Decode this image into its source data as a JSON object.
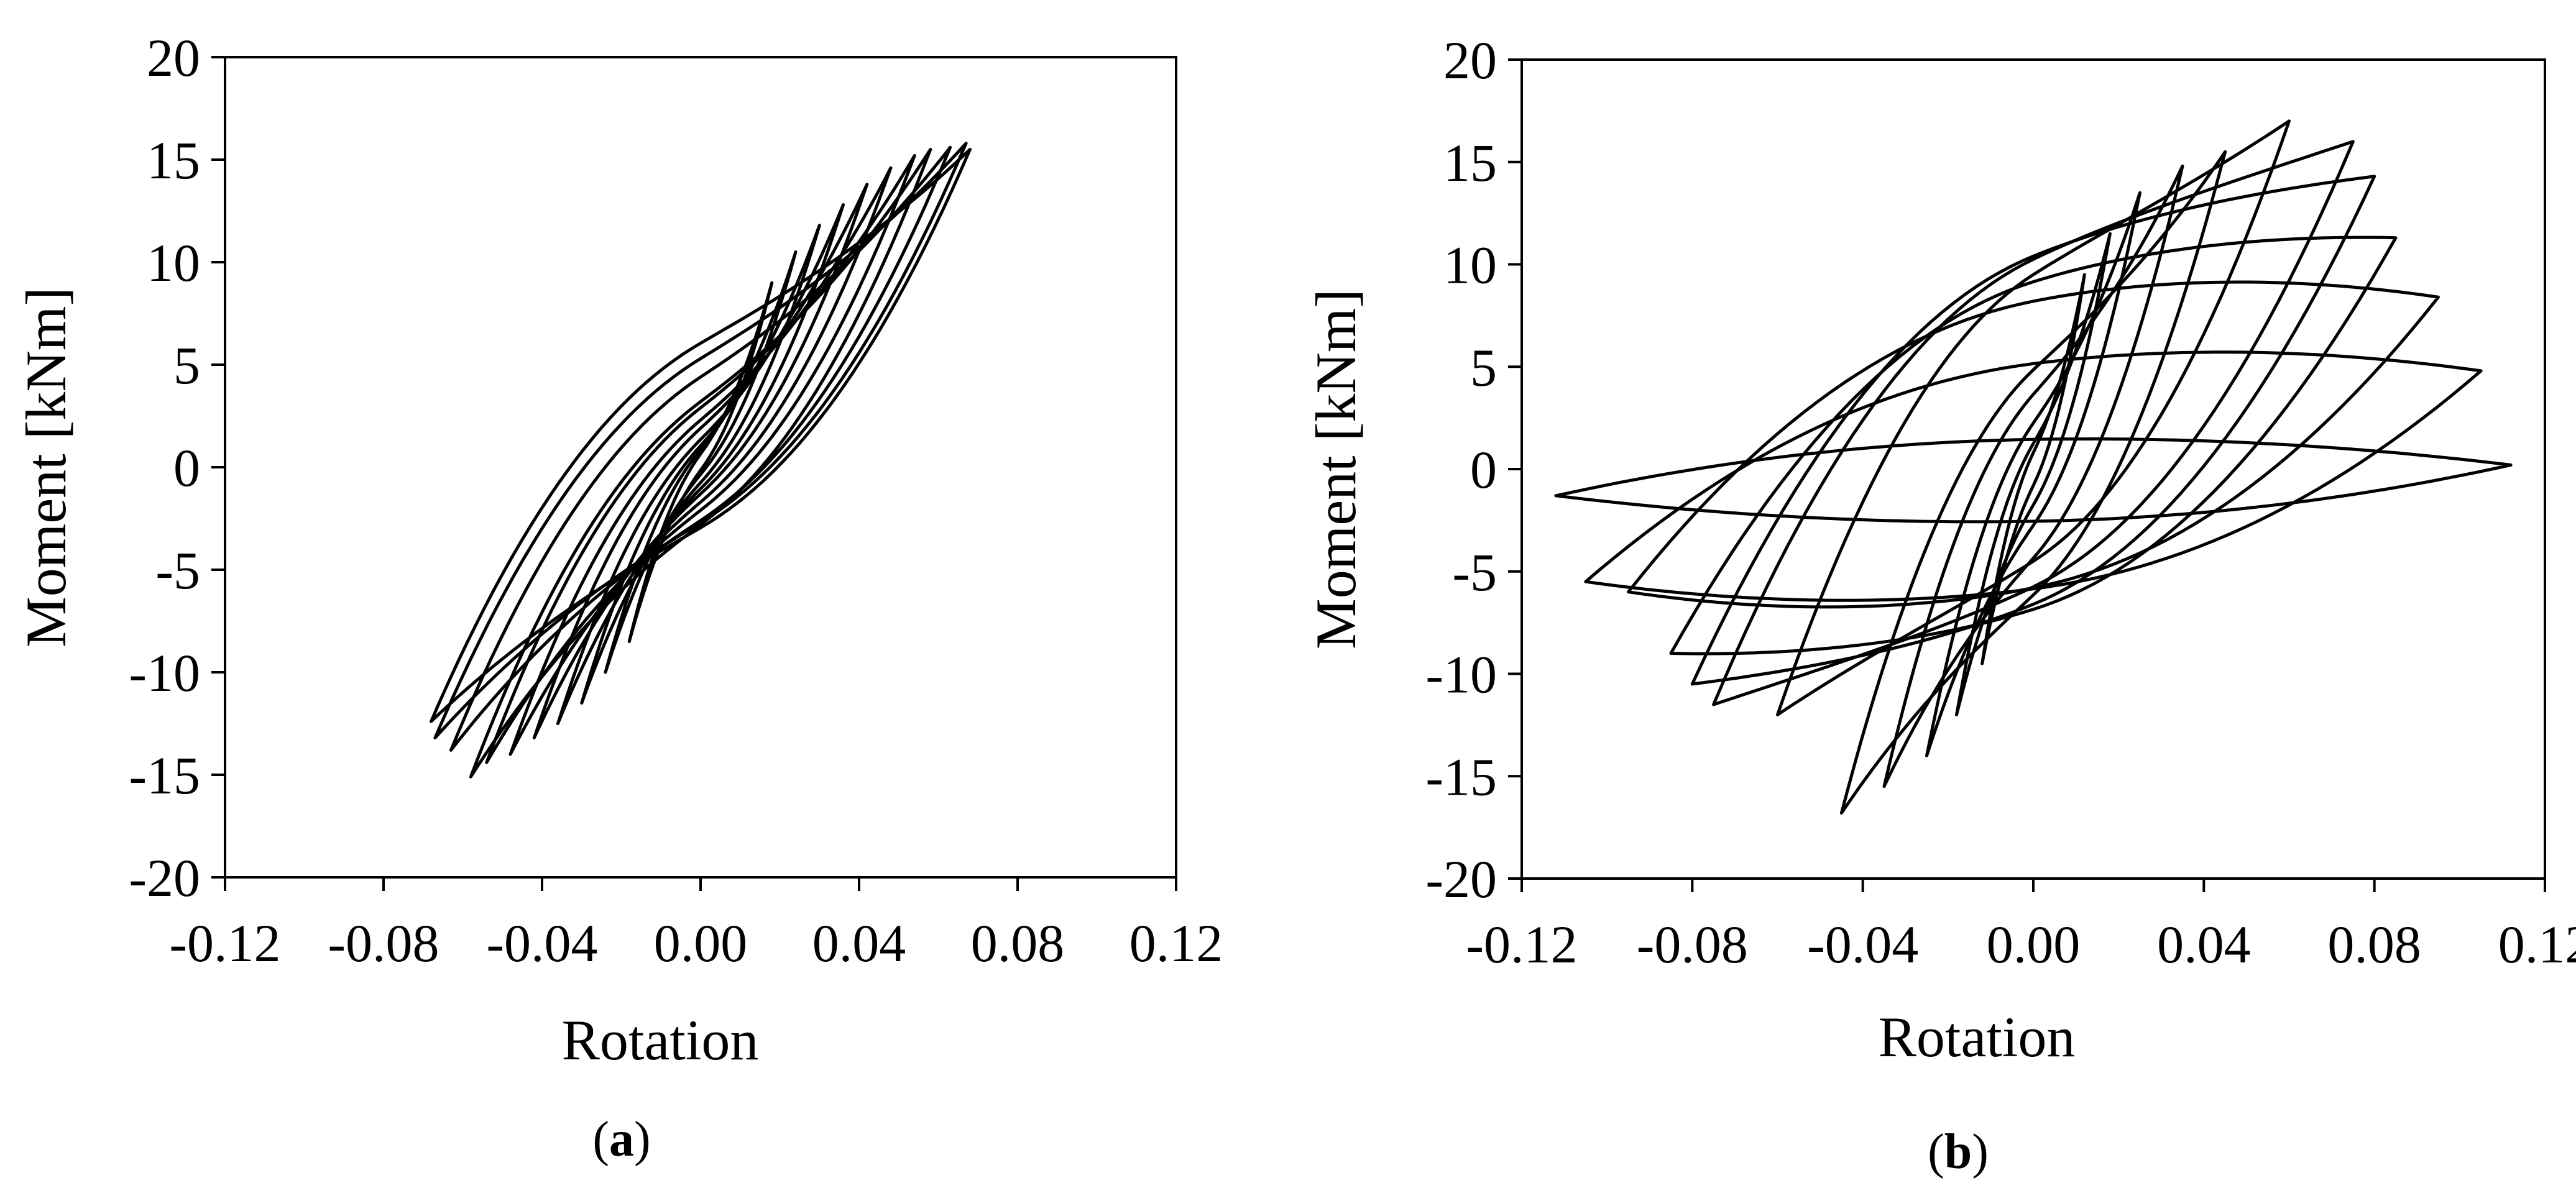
{
  "chart_data": [
    {
      "type": "line",
      "caption_open": "(",
      "caption_letter": "a",
      "caption_close": ")",
      "xlabel": "Rotation",
      "ylabel": "Moment [kNm]",
      "xlim": [
        -0.12,
        0.12
      ],
      "ylim": [
        -20,
        20
      ],
      "xticks": [
        -0.12,
        -0.08,
        -0.04,
        0.0,
        0.04,
        0.08,
        0.12
      ],
      "xtick_labels": [
        "-0.12",
        "-0.08",
        "-0.04",
        "0.00",
        "0.04",
        "0.08",
        "0.12"
      ],
      "yticks": [
        20,
        15,
        10,
        5,
        0,
        -5,
        -10,
        -15,
        -20
      ],
      "ytick_labels": [
        "20",
        "15",
        "10",
        "5",
        "0",
        "-5",
        "-10",
        "-15",
        "-20"
      ],
      "grid": false,
      "series_color": "#000000",
      "loops": [
        {
          "amp": 0.018,
          "mmax": 9.0,
          "mmin": -8.5,
          "width": 0.4
        },
        {
          "amp": 0.024,
          "mmax": 10.5,
          "mmin": -10.0,
          "width": 0.6
        },
        {
          "amp": 0.03,
          "mmax": 11.8,
          "mmin": -11.5,
          "width": 0.9
        },
        {
          "amp": 0.036,
          "mmax": 12.8,
          "mmin": -12.5,
          "width": 1.2
        },
        {
          "amp": 0.042,
          "mmax": 13.8,
          "mmin": -13.2,
          "width": 1.6
        },
        {
          "amp": 0.048,
          "mmax": 14.6,
          "mmin": -14.0,
          "width": 2.0
        },
        {
          "amp": 0.054,
          "mmax": 15.2,
          "mmin": -14.4,
          "width": 2.5
        },
        {
          "amp": 0.058,
          "mmax": 15.5,
          "mmin": -15.1,
          "width": 3.0
        },
        {
          "amp": 0.063,
          "mmax": 15.6,
          "mmin": -13.8,
          "width": 3.5
        },
        {
          "amp": 0.067,
          "mmax": 15.8,
          "mmin": -13.2,
          "width": 4.0
        },
        {
          "amp": 0.068,
          "mmax": 15.5,
          "mmin": -12.4,
          "width": 4.5
        }
      ]
    },
    {
      "type": "line",
      "caption_open": "(",
      "caption_letter": "b",
      "caption_close": ")",
      "xlabel": "Rotation",
      "ylabel": "Moment [kNm]",
      "xlim": [
        -0.12,
        0.12
      ],
      "ylim": [
        -20,
        20
      ],
      "xticks": [
        -0.12,
        -0.08,
        -0.04,
        0.0,
        0.04,
        0.08,
        0.12
      ],
      "xtick_labels": [
        "-0.12",
        "-0.08",
        "-0.04",
        "0.00",
        "0.04",
        "0.08",
        "0.12"
      ],
      "yticks": [
        20,
        15,
        10,
        5,
        0,
        -5,
        -10,
        -15,
        -20
      ],
      "ytick_labels": [
        "20",
        "15",
        "10",
        "5",
        "0",
        "-5",
        "-10",
        "-15",
        "-20"
      ],
      "grid": false,
      "series_color": "#000000",
      "loops": [
        {
          "amp": 0.012,
          "mmax": 9.5,
          "mmin": -9.5,
          "width": 0.8
        },
        {
          "amp": 0.018,
          "mmax": 11.5,
          "mmin": -12.0,
          "width": 1.5
        },
        {
          "amp": 0.025,
          "mmax": 13.5,
          "mmin": -14.0,
          "width": 2.5
        },
        {
          "amp": 0.035,
          "mmax": 14.8,
          "mmin": -15.5,
          "width": 4.0
        },
        {
          "amp": 0.045,
          "mmax": 15.5,
          "mmin": -16.8,
          "width": 5.5
        },
        {
          "amp": 0.06,
          "mmax": 17.0,
          "mmin": -12.0,
          "width": 7.0
        },
        {
          "amp": 0.075,
          "mmax": 16.0,
          "mmin": -11.5,
          "width": 8.0
        },
        {
          "amp": 0.08,
          "mmax": 14.3,
          "mmin": -10.5,
          "width": 8.5
        },
        {
          "amp": 0.085,
          "mmax": 11.3,
          "mmin": -9.0,
          "width": 8.0
        },
        {
          "amp": 0.095,
          "mmax": 8.4,
          "mmin": -6.0,
          "width": 7.0
        },
        {
          "amp": 0.105,
          "mmax": 4.8,
          "mmin": -5.5,
          "width": 5.5
        },
        {
          "amp": 0.112,
          "mmax": 0.2,
          "mmin": -1.3,
          "width": 2.0
        }
      ]
    }
  ]
}
